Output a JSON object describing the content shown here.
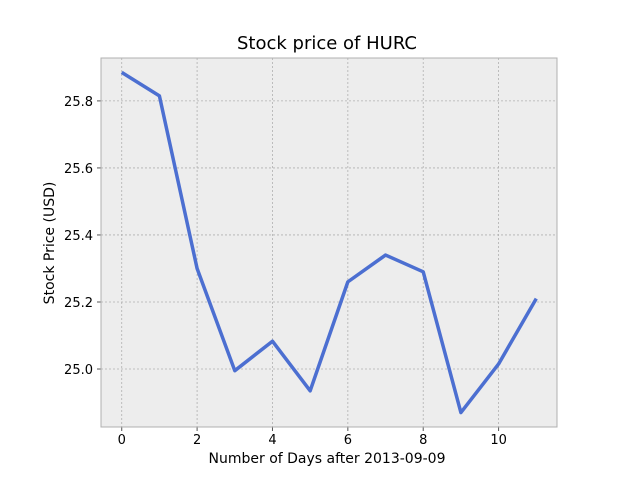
{
  "chart_data": {
    "type": "line",
    "title": "Stock price of HURC",
    "xlabel": "Number of Days after 2013-09-09",
    "ylabel": "Stock Price (USD)",
    "xlim": [
      -0.55,
      11.55
    ],
    "ylim": [
      24.827,
      25.928
    ],
    "xticks": [
      0,
      2,
      4,
      6,
      8,
      10
    ],
    "yticks": [
      25.0,
      25.2,
      25.4,
      25.6,
      25.8
    ],
    "ytick_labels": [
      "25.0",
      "25.2",
      "25.4",
      "25.6",
      "25.8"
    ],
    "grid": true,
    "colors": {
      "line": "#4c6fd1",
      "plot_bg": "#ededed",
      "grid": "#b0b0b0",
      "frame": "#b0b0b0"
    },
    "series": [
      {
        "x": [
          0,
          1,
          2,
          3,
          4,
          5,
          6,
          7,
          8,
          9,
          10,
          11
        ],
        "values": [
          25.885,
          25.815,
          25.3,
          24.995,
          25.083,
          24.935,
          25.26,
          25.34,
          25.29,
          24.87,
          25.015,
          25.21
        ]
      }
    ]
  }
}
